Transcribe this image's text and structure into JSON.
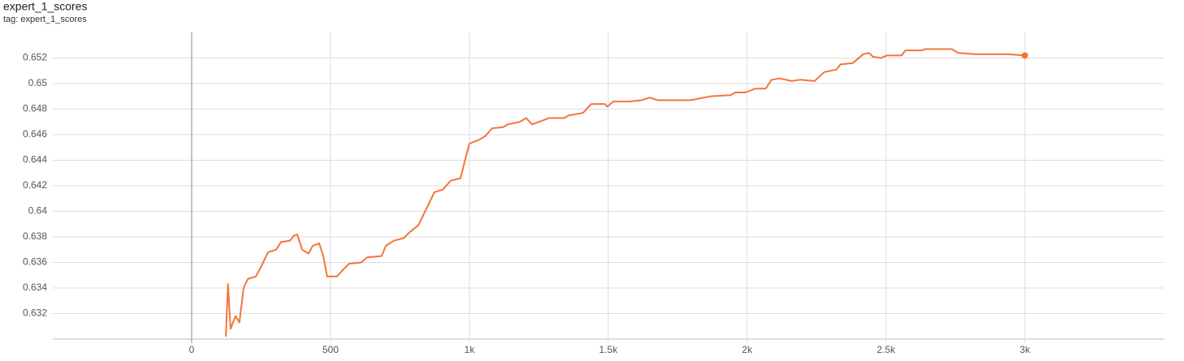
{
  "chart_data": {
    "type": "line",
    "title": "expert_1_scores",
    "subtitle": "tag: expert_1_scores",
    "color": "#f4743b",
    "grid": true,
    "xlim": [
      -500,
      3500
    ],
    "xticks": [
      0,
      500,
      {
        "value": 1000,
        "label": "1k"
      },
      {
        "value": 1500,
        "label": "1.5k"
      },
      {
        "value": 2000,
        "label": "2k"
      },
      {
        "value": 2500,
        "label": "2.5k"
      },
      {
        "value": 3000,
        "label": "3k"
      }
    ],
    "ylim": [
      0.63,
      0.654
    ],
    "yticks": [
      0.632,
      0.634,
      0.636,
      0.638,
      0.64,
      0.642,
      0.644,
      0.646,
      0.648,
      0.65,
      0.652
    ],
    "x": [
      123,
      131,
      140,
      158,
      172,
      187,
      202,
      231,
      251,
      275,
      304,
      322,
      354,
      368,
      380,
      398,
      421,
      436,
      459,
      474,
      488,
      523,
      544,
      567,
      611,
      632,
      684,
      699,
      728,
      763,
      787,
      816,
      845,
      874,
      904,
      933,
      968,
      982,
      1000,
      1035,
      1058,
      1082,
      1123,
      1137,
      1181,
      1205,
      1225,
      1263,
      1287,
      1342,
      1357,
      1409,
      1439,
      1488,
      1497,
      1518,
      1576,
      1620,
      1649,
      1678,
      1795,
      1868,
      1942,
      1956,
      1994,
      2029,
      2067,
      2088,
      2117,
      2161,
      2190,
      2243,
      2278,
      2322,
      2336,
      2380,
      2418,
      2439,
      2453,
      2482,
      2503,
      2556,
      2570,
      2629,
      2643,
      2737,
      2760,
      2819,
      2848,
      2936,
      3000
    ],
    "values": [
      0.6302,
      0.6343,
      0.6308,
      0.6318,
      0.6313,
      0.634,
      0.6347,
      0.6349,
      0.6357,
      0.6368,
      0.637,
      0.6376,
      0.6377,
      0.6381,
      0.6382,
      0.637,
      0.6367,
      0.6373,
      0.6375,
      0.6365,
      0.6349,
      0.6349,
      0.6354,
      0.6359,
      0.636,
      0.6364,
      0.6365,
      0.6373,
      0.6377,
      0.6379,
      0.6384,
      0.6389,
      0.6402,
      0.6415,
      0.6417,
      0.6424,
      0.6426,
      0.6438,
      0.6453,
      0.6456,
      0.6459,
      0.6465,
      0.6466,
      0.6468,
      0.647,
      0.6473,
      0.6468,
      0.6471,
      0.6473,
      0.6473,
      0.6475,
      0.6477,
      0.6484,
      0.6484,
      0.6482,
      0.6486,
      0.6486,
      0.6487,
      0.6489,
      0.6487,
      0.6487,
      0.649,
      0.6491,
      0.6493,
      0.6493,
      0.6496,
      0.6496,
      0.6503,
      0.6504,
      0.6502,
      0.6503,
      0.6502,
      0.6509,
      0.6511,
      0.6515,
      0.6516,
      0.6523,
      0.6524,
      0.6521,
      0.652,
      0.6522,
      0.6522,
      0.6526,
      0.6526,
      0.6527,
      0.6527,
      0.6524,
      0.6523,
      0.6523,
      0.6523,
      0.6522
    ]
  }
}
